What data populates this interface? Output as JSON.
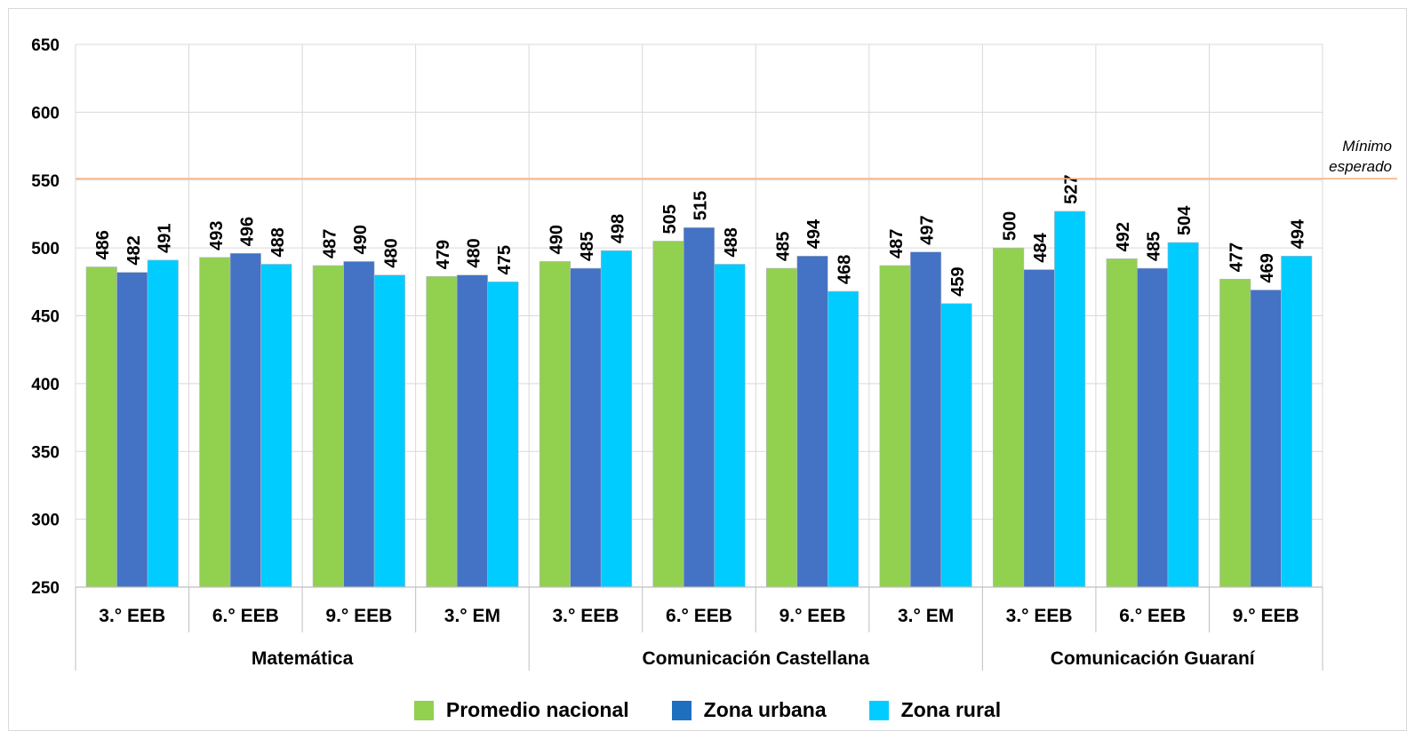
{
  "chart_data": {
    "type": "bar",
    "ylim": [
      250,
      650
    ],
    "yticks": [
      250,
      300,
      350,
      400,
      450,
      500,
      550,
      600,
      650
    ],
    "grid": true,
    "categories": [
      "3.° EEB",
      "6.° EEB",
      "9.° EEB",
      "3.° EM",
      "3.° EEB",
      "6.° EEB",
      "9.° EEB",
      "3.° EM",
      "3.° EEB",
      "6.° EEB",
      "9.° EEB"
    ],
    "groups": [
      {
        "label": "Matemática",
        "count": 4
      },
      {
        "label": "Comunicación Castellana",
        "count": 4
      },
      {
        "label": "Comunicación Guaraní",
        "count": 3
      }
    ],
    "series": [
      {
        "name": "Promedio nacional",
        "color": "#92d050",
        "values": [
          486,
          493,
          487,
          479,
          490,
          505,
          485,
          487,
          500,
          492,
          477
        ]
      },
      {
        "name": "Zona urbana",
        "color": "#4472c4",
        "values": [
          482,
          496,
          490,
          480,
          485,
          515,
          494,
          497,
          484,
          485,
          469
        ]
      },
      {
        "name": "Zona rural",
        "color": "#00ccff",
        "values": [
          491,
          488,
          480,
          475,
          498,
          488,
          468,
          459,
          527,
          504,
          494
        ]
      }
    ],
    "reference_line": {
      "value": 551,
      "label_lines": [
        "Mínimo",
        "esperado"
      ],
      "color": "#f4b183"
    },
    "legend_position": "bottom"
  },
  "legend_swatch_colors": [
    "#92d050",
    "#1f6fbf",
    "#00ccff"
  ]
}
